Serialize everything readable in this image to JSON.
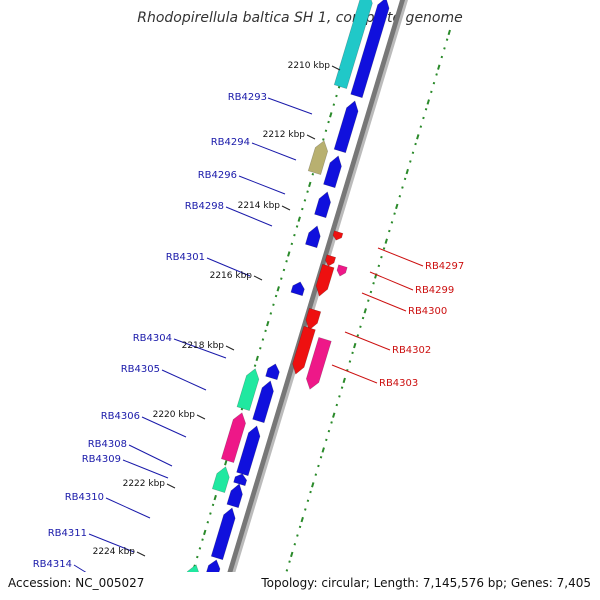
{
  "title": "Rhodopirellula baltica SH 1, complete genome",
  "footer": {
    "accession": "Accession: NC_005027",
    "summary": "Topology: circular; Length: 7,145,576 bp; Genes: 7,405"
  },
  "colors": {
    "backbone": "#777777",
    "tick": "#2a8a2a",
    "forward_label": "#1a1aaa",
    "reverse_label": "#cc1010",
    "blue": "#1010dd",
    "red": "#ee1010",
    "cyan": "#20c8c8",
    "mint": "#20e8a0",
    "pink": "#ee1888",
    "olive": "#b8b070"
  },
  "kbp_labels": [
    "2210 kbp",
    "2212 kbp",
    "2214 kbp",
    "2216 kbp",
    "2218 kbp",
    "2220 kbp",
    "2222 kbp",
    "2224 kbp"
  ],
  "forward_genes": [
    "RB4293",
    "RB4294",
    "RB4296",
    "RB4298",
    "RB4301",
    "RB4304",
    "RB4305",
    "RB4306",
    "RB4308",
    "RB4309",
    "RB4310",
    "RB4311",
    "RB4314"
  ],
  "reverse_genes": [
    "RB4297",
    "RB4299",
    "RB4300",
    "RB4302",
    "RB4303"
  ]
}
